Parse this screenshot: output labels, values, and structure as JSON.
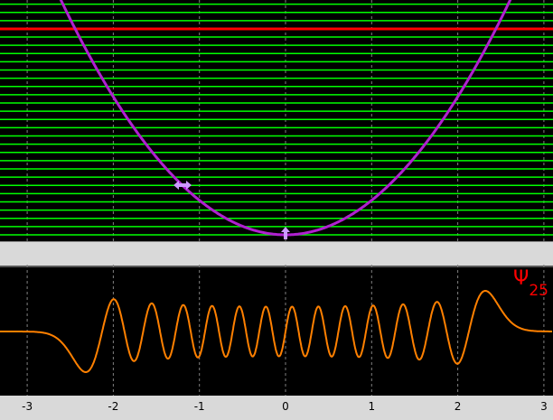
{
  "colors": {
    "background": "#000000",
    "energy_level": "#00ff00",
    "selected_level": "#ff0000",
    "potential": "#b020d0",
    "handle": "#cc99ff",
    "wavefunction": "#ff8000",
    "separator": "#d9d9d9",
    "grid": "#808080",
    "label": "#ff0000"
  },
  "energy_panel": {
    "level_count": 29,
    "selected_level": 25,
    "handles": [
      "width-drag-handle",
      "offset-drag-handle"
    ]
  },
  "chart_data": {
    "type": "line",
    "title": "",
    "xlabel": "",
    "ylabel": "",
    "xlim": [
      -3.05,
      3.05
    ],
    "x_ticks": [
      "-3",
      "-2",
      "-1",
      "0",
      "1",
      "2",
      "3"
    ],
    "grid": "vertical dashed",
    "series": [
      {
        "name": "Ψ25",
        "label_symbol": "Ψ",
        "label_subscript": "25",
        "function": "harmonic oscillator eigenstate n=25",
        "turning_points": [
          -2.47,
          2.47
        ]
      }
    ]
  }
}
